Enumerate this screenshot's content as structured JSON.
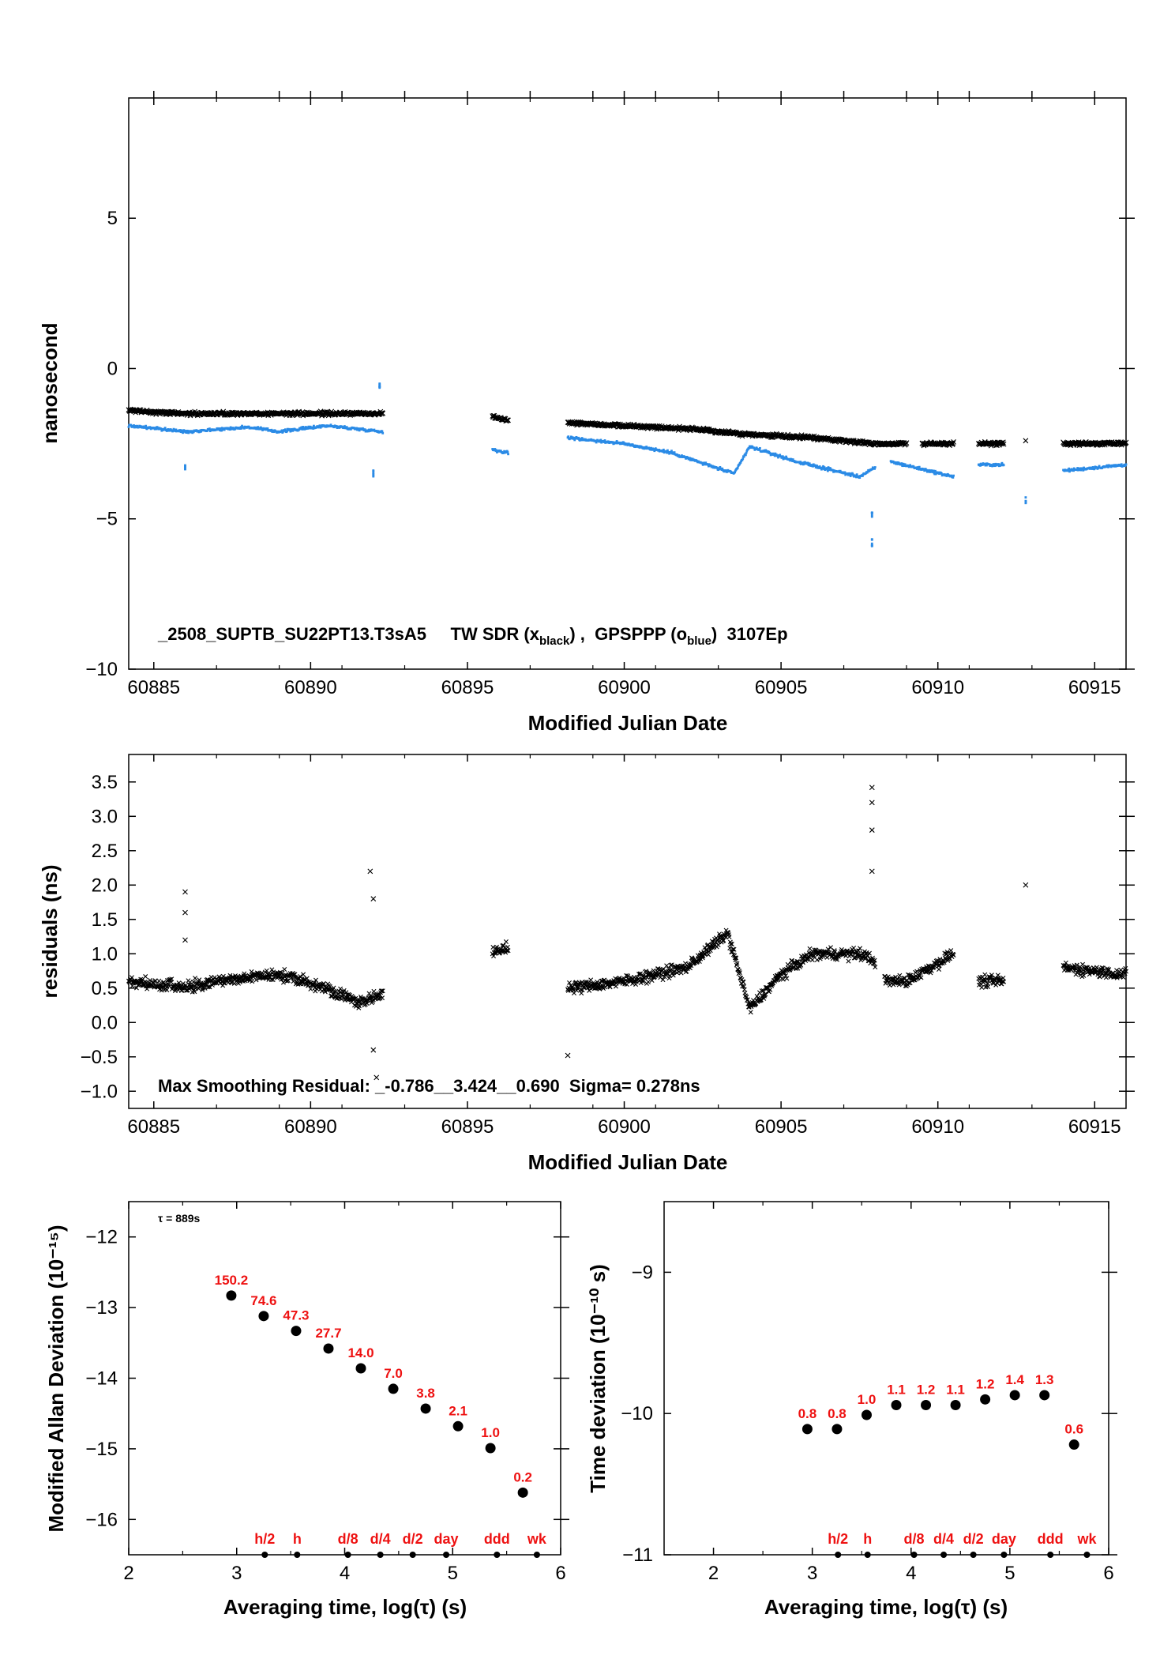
{
  "colors": {
    "black_series": "#000000",
    "blue_series": "#2b8be6",
    "red_labels": "#ee1111"
  },
  "chart_data": [
    {
      "type": "scatter",
      "id": "time_series",
      "xlabel": "Modified Julian Date",
      "ylabel": "nanosecond",
      "xlim": [
        60884.2,
        60916.0
      ],
      "ylim": [
        -10,
        9
      ],
      "xticks": [
        60885,
        60890,
        60895,
        60900,
        60905,
        60910,
        60915
      ],
      "yticks": [
        5,
        0,
        -5,
        -10
      ],
      "ytick_labels": [
        "5",
        "0",
        "−5",
        "−10"
      ],
      "annotation": {
        "prefix": "_2508_SUPTB_SU22PT13.T3sA5     TW SDR (x",
        "sub1": "black",
        "middle": ") ,  GPSPPP (o",
        "sub2": "blue",
        "suffix": ")  3107Ep"
      },
      "series": [
        {
          "marker": "x",
          "color": "black",
          "segments": [
            {
              "x": [
                60884.2,
                60886.0,
                60889.0,
                60892.3
              ],
              "y": [
                -1.4,
                -1.5,
                -1.5,
                -1.5
              ]
            },
            {
              "x": [
                60895.8,
                60896.3
              ],
              "y": [
                -1.6,
                -1.7
              ]
            },
            {
              "x": [
                60898.2,
                60900.0,
                60902.0,
                60904.0,
                60906.0,
                60908.0,
                60909.0
              ],
              "y": [
                -1.8,
                -1.9,
                -2.0,
                -2.2,
                -2.3,
                -2.5,
                -2.5
              ]
            },
            {
              "x": [
                60909.5,
                60910.5
              ],
              "y": [
                -2.5,
                -2.5
              ]
            },
            {
              "x": [
                60911.3,
                60912.1
              ],
              "y": [
                -2.5,
                -2.5
              ]
            },
            {
              "x": [
                60914.0,
                60916.0
              ],
              "y": [
                -2.5,
                -2.5
              ]
            }
          ],
          "isolated": [
            {
              "x": 60912.8,
              "y": -2.4
            }
          ]
        },
        {
          "marker": "o",
          "color": "blue",
          "segments": [
            {
              "x": [
                60884.2,
                60886.0,
                60888.0,
                60889.0,
                60890.5,
                60892.3
              ],
              "y": [
                -1.9,
                -2.1,
                -1.95,
                -2.1,
                -1.9,
                -2.1
              ]
            },
            {
              "x": [
                60895.8,
                60896.3
              ],
              "y": [
                -2.7,
                -2.8
              ]
            },
            {
              "x": [
                60898.2,
                60900.0,
                60901.5,
                60903.5,
                60904.0,
                60905.5,
                60907.5,
                60908.0
              ],
              "y": [
                -2.3,
                -2.5,
                -2.8,
                -3.5,
                -2.6,
                -3.1,
                -3.6,
                -3.3
              ]
            },
            {
              "x": [
                60908.5,
                60910.5
              ],
              "y": [
                -3.1,
                -3.6
              ]
            },
            {
              "x": [
                60911.3,
                60912.1
              ],
              "y": [
                -3.2,
                -3.2
              ]
            },
            {
              "x": [
                60914.0,
                60916.0
              ],
              "y": [
                -3.4,
                -3.2
              ]
            }
          ],
          "outliers": [
            {
              "x": 60886.0,
              "y": -3.3
            },
            {
              "x": 60892.0,
              "y": -3.5
            },
            {
              "x": 60892.2,
              "y": -0.6
            },
            {
              "x": 60907.9,
              "y": -5.8
            },
            {
              "x": 60907.9,
              "y": -4.9
            },
            {
              "x": 60912.8,
              "y": -4.4
            }
          ]
        }
      ]
    },
    {
      "type": "scatter",
      "id": "residuals",
      "xlabel": "Modified Julian Date",
      "ylabel": "residuals (ns)",
      "xlim": [
        60884.2,
        60916.0
      ],
      "ylim": [
        -1.25,
        3.9
      ],
      "xticks": [
        60885,
        60890,
        60895,
        60900,
        60905,
        60910,
        60915
      ],
      "yticks": [
        3.5,
        3.0,
        2.5,
        2.0,
        1.5,
        1.0,
        0.5,
        0.0,
        -0.5,
        -1.0
      ],
      "annotation": "Max Smoothing Residual: _-0.786__3.424__0.690  Sigma= 0.278ns",
      "segments": [
        {
          "x": [
            60884.2,
            60886.0,
            60887.0,
            60889.0,
            60890.5,
            60891.5,
            60892.3
          ],
          "y": [
            0.6,
            0.5,
            0.6,
            0.7,
            0.5,
            0.3,
            0.4
          ]
        },
        {
          "x": [
            60895.8,
            60896.3
          ],
          "y": [
            1.0,
            1.1
          ]
        },
        {
          "x": [
            60898.2,
            60900.0,
            60902.0,
            60903.3,
            60904.0,
            60905.0,
            60906.0,
            60907.5,
            60908.0
          ],
          "y": [
            0.5,
            0.6,
            0.8,
            1.3,
            0.2,
            0.7,
            1.0,
            1.0,
            0.9
          ]
        },
        {
          "x": [
            60908.3,
            60909.0,
            60910.5
          ],
          "y": [
            0.6,
            0.6,
            1.0
          ]
        },
        {
          "x": [
            60911.3,
            60912.1
          ],
          "y": [
            0.6,
            0.6
          ]
        },
        {
          "x": [
            60914.0,
            60916.0
          ],
          "y": [
            0.8,
            0.7
          ]
        }
      ],
      "outliers": [
        {
          "x": 60886.0,
          "y": 1.9
        },
        {
          "x": 60886.0,
          "y": 1.6
        },
        {
          "x": 60886.0,
          "y": 1.2
        },
        {
          "x": 60891.9,
          "y": 2.2
        },
        {
          "x": 60892.0,
          "y": 1.8
        },
        {
          "x": 60892.1,
          "y": -0.8
        },
        {
          "x": 60892.0,
          "y": -0.4
        },
        {
          "x": 60898.2,
          "y": -0.48
        },
        {
          "x": 60907.9,
          "y": 3.42
        },
        {
          "x": 60907.9,
          "y": 3.2
        },
        {
          "x": 60907.9,
          "y": 2.8
        },
        {
          "x": 60907.9,
          "y": 2.2
        },
        {
          "x": 60912.8,
          "y": 2.0
        }
      ]
    },
    {
      "type": "scatter",
      "id": "mdev",
      "xlabel": "Averaging time, log(τ) (s)",
      "ylabel": "Modified Allan Deviation (10⁻¹⁵)",
      "xlim": [
        2,
        6
      ],
      "ylim": [
        -16.5,
        -11.5
      ],
      "xticks": [
        2,
        3,
        4,
        5,
        6
      ],
      "yticks": [
        -12,
        -13,
        -14,
        -15,
        -16
      ],
      "ytick_labels": [
        "−12",
        "−13",
        "−14",
        "−15",
        "−16"
      ],
      "annotation": "τ = 889s",
      "points": [
        {
          "x": 2.95,
          "y": -12.83,
          "label": "150.2"
        },
        {
          "x": 3.25,
          "y": -13.12,
          "label": "74.6"
        },
        {
          "x": 3.55,
          "y": -13.33,
          "label": "47.3"
        },
        {
          "x": 3.85,
          "y": -13.58,
          "label": "27.7"
        },
        {
          "x": 4.15,
          "y": -13.86,
          "label": "14.0"
        },
        {
          "x": 4.45,
          "y": -14.15,
          "label": "7.0"
        },
        {
          "x": 4.75,
          "y": -14.43,
          "label": "3.8"
        },
        {
          "x": 5.05,
          "y": -14.68,
          "label": "2.1"
        },
        {
          "x": 5.35,
          "y": -14.99,
          "label": "1.0"
        },
        {
          "x": 5.65,
          "y": -15.62,
          "label": "0.2"
        }
      ],
      "time_markers": [
        {
          "x": 3.26,
          "label": "h/2"
        },
        {
          "x": 3.56,
          "label": "h"
        },
        {
          "x": 4.03,
          "label": "d/8"
        },
        {
          "x": 4.33,
          "label": "d/4"
        },
        {
          "x": 4.63,
          "label": "d/2"
        },
        {
          "x": 4.94,
          "label": "day"
        },
        {
          "x": 5.41,
          "label": "ddd"
        },
        {
          "x": 5.78,
          "label": "wk"
        }
      ]
    },
    {
      "type": "scatter",
      "id": "tdev",
      "xlabel": "Averaging time, log(τ) (s)",
      "ylabel": "Time deviation (10⁻¹⁰ s)",
      "xlim": [
        1.5,
        6.0
      ],
      "ylim": [
        -11,
        -8.5
      ],
      "xticks": [
        2,
        3,
        4,
        5,
        6
      ],
      "yticks": [
        -9,
        -10,
        -11
      ],
      "ytick_labels": [
        "−9",
        "−10",
        "−11"
      ],
      "points": [
        {
          "x": 2.95,
          "y": -10.11,
          "label": "0.8"
        },
        {
          "x": 3.25,
          "y": -10.11,
          "label": "0.8"
        },
        {
          "x": 3.55,
          "y": -10.01,
          "label": "1.0"
        },
        {
          "x": 3.85,
          "y": -9.94,
          "label": "1.1"
        },
        {
          "x": 4.15,
          "y": -9.94,
          "label": "1.2"
        },
        {
          "x": 4.45,
          "y": -9.94,
          "label": "1.1"
        },
        {
          "x": 4.75,
          "y": -9.9,
          "label": "1.2"
        },
        {
          "x": 5.05,
          "y": -9.87,
          "label": "1.4"
        },
        {
          "x": 5.35,
          "y": -9.87,
          "label": "1.3"
        },
        {
          "x": 5.65,
          "y": -10.22,
          "label": "0.6"
        }
      ],
      "time_markers": [
        {
          "x": 3.26,
          "label": "h/2"
        },
        {
          "x": 3.56,
          "label": "h"
        },
        {
          "x": 4.03,
          "label": "d/8"
        },
        {
          "x": 4.33,
          "label": "d/4"
        },
        {
          "x": 4.63,
          "label": "d/2"
        },
        {
          "x": 4.94,
          "label": "day"
        },
        {
          "x": 5.41,
          "label": "ddd"
        },
        {
          "x": 5.78,
          "label": "wk"
        }
      ]
    }
  ]
}
